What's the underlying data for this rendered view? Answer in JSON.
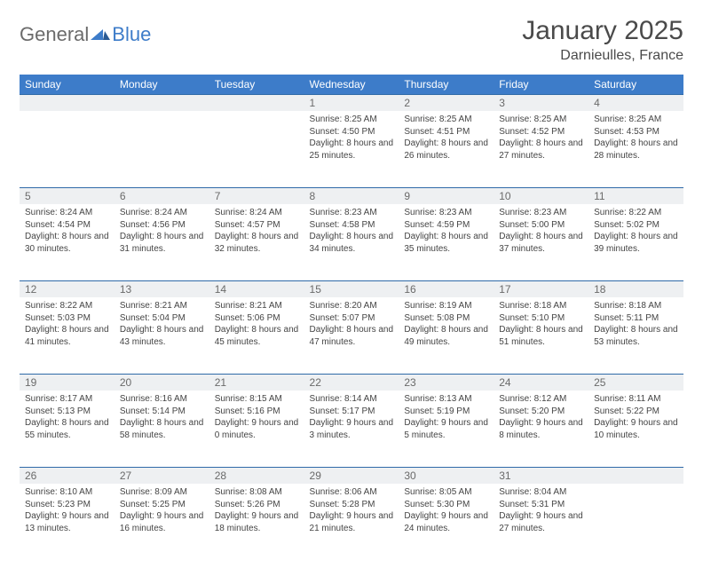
{
  "brand": {
    "general": "General",
    "blue": "Blue"
  },
  "title": "January 2025",
  "location": "Darnieulles, France",
  "header_bg": "#3d7cc9",
  "daynum_bg": "#eef0f2",
  "rule_color": "#2f6aa8",
  "weekdays": [
    "Sunday",
    "Monday",
    "Tuesday",
    "Wednesday",
    "Thursday",
    "Friday",
    "Saturday"
  ],
  "weeks": [
    [
      null,
      null,
      null,
      {
        "n": "1",
        "sr": "8:25 AM",
        "ss": "4:50 PM",
        "dl": "8 hours and 25 minutes."
      },
      {
        "n": "2",
        "sr": "8:25 AM",
        "ss": "4:51 PM",
        "dl": "8 hours and 26 minutes."
      },
      {
        "n": "3",
        "sr": "8:25 AM",
        "ss": "4:52 PM",
        "dl": "8 hours and 27 minutes."
      },
      {
        "n": "4",
        "sr": "8:25 AM",
        "ss": "4:53 PM",
        "dl": "8 hours and 28 minutes."
      }
    ],
    [
      {
        "n": "5",
        "sr": "8:24 AM",
        "ss": "4:54 PM",
        "dl": "8 hours and 30 minutes."
      },
      {
        "n": "6",
        "sr": "8:24 AM",
        "ss": "4:56 PM",
        "dl": "8 hours and 31 minutes."
      },
      {
        "n": "7",
        "sr": "8:24 AM",
        "ss": "4:57 PM",
        "dl": "8 hours and 32 minutes."
      },
      {
        "n": "8",
        "sr": "8:23 AM",
        "ss": "4:58 PM",
        "dl": "8 hours and 34 minutes."
      },
      {
        "n": "9",
        "sr": "8:23 AM",
        "ss": "4:59 PM",
        "dl": "8 hours and 35 minutes."
      },
      {
        "n": "10",
        "sr": "8:23 AM",
        "ss": "5:00 PM",
        "dl": "8 hours and 37 minutes."
      },
      {
        "n": "11",
        "sr": "8:22 AM",
        "ss": "5:02 PM",
        "dl": "8 hours and 39 minutes."
      }
    ],
    [
      {
        "n": "12",
        "sr": "8:22 AM",
        "ss": "5:03 PM",
        "dl": "8 hours and 41 minutes."
      },
      {
        "n": "13",
        "sr": "8:21 AM",
        "ss": "5:04 PM",
        "dl": "8 hours and 43 minutes."
      },
      {
        "n": "14",
        "sr": "8:21 AM",
        "ss": "5:06 PM",
        "dl": "8 hours and 45 minutes."
      },
      {
        "n": "15",
        "sr": "8:20 AM",
        "ss": "5:07 PM",
        "dl": "8 hours and 47 minutes."
      },
      {
        "n": "16",
        "sr": "8:19 AM",
        "ss": "5:08 PM",
        "dl": "8 hours and 49 minutes."
      },
      {
        "n": "17",
        "sr": "8:18 AM",
        "ss": "5:10 PM",
        "dl": "8 hours and 51 minutes."
      },
      {
        "n": "18",
        "sr": "8:18 AM",
        "ss": "5:11 PM",
        "dl": "8 hours and 53 minutes."
      }
    ],
    [
      {
        "n": "19",
        "sr": "8:17 AM",
        "ss": "5:13 PM",
        "dl": "8 hours and 55 minutes."
      },
      {
        "n": "20",
        "sr": "8:16 AM",
        "ss": "5:14 PM",
        "dl": "8 hours and 58 minutes."
      },
      {
        "n": "21",
        "sr": "8:15 AM",
        "ss": "5:16 PM",
        "dl": "9 hours and 0 minutes."
      },
      {
        "n": "22",
        "sr": "8:14 AM",
        "ss": "5:17 PM",
        "dl": "9 hours and 3 minutes."
      },
      {
        "n": "23",
        "sr": "8:13 AM",
        "ss": "5:19 PM",
        "dl": "9 hours and 5 minutes."
      },
      {
        "n": "24",
        "sr": "8:12 AM",
        "ss": "5:20 PM",
        "dl": "9 hours and 8 minutes."
      },
      {
        "n": "25",
        "sr": "8:11 AM",
        "ss": "5:22 PM",
        "dl": "9 hours and 10 minutes."
      }
    ],
    [
      {
        "n": "26",
        "sr": "8:10 AM",
        "ss": "5:23 PM",
        "dl": "9 hours and 13 minutes."
      },
      {
        "n": "27",
        "sr": "8:09 AM",
        "ss": "5:25 PM",
        "dl": "9 hours and 16 minutes."
      },
      {
        "n": "28",
        "sr": "8:08 AM",
        "ss": "5:26 PM",
        "dl": "9 hours and 18 minutes."
      },
      {
        "n": "29",
        "sr": "8:06 AM",
        "ss": "5:28 PM",
        "dl": "9 hours and 21 minutes."
      },
      {
        "n": "30",
        "sr": "8:05 AM",
        "ss": "5:30 PM",
        "dl": "9 hours and 24 minutes."
      },
      {
        "n": "31",
        "sr": "8:04 AM",
        "ss": "5:31 PM",
        "dl": "9 hours and 27 minutes."
      },
      null
    ]
  ],
  "labels": {
    "sunrise": "Sunrise:",
    "sunset": "Sunset:",
    "daylight": "Daylight:"
  }
}
